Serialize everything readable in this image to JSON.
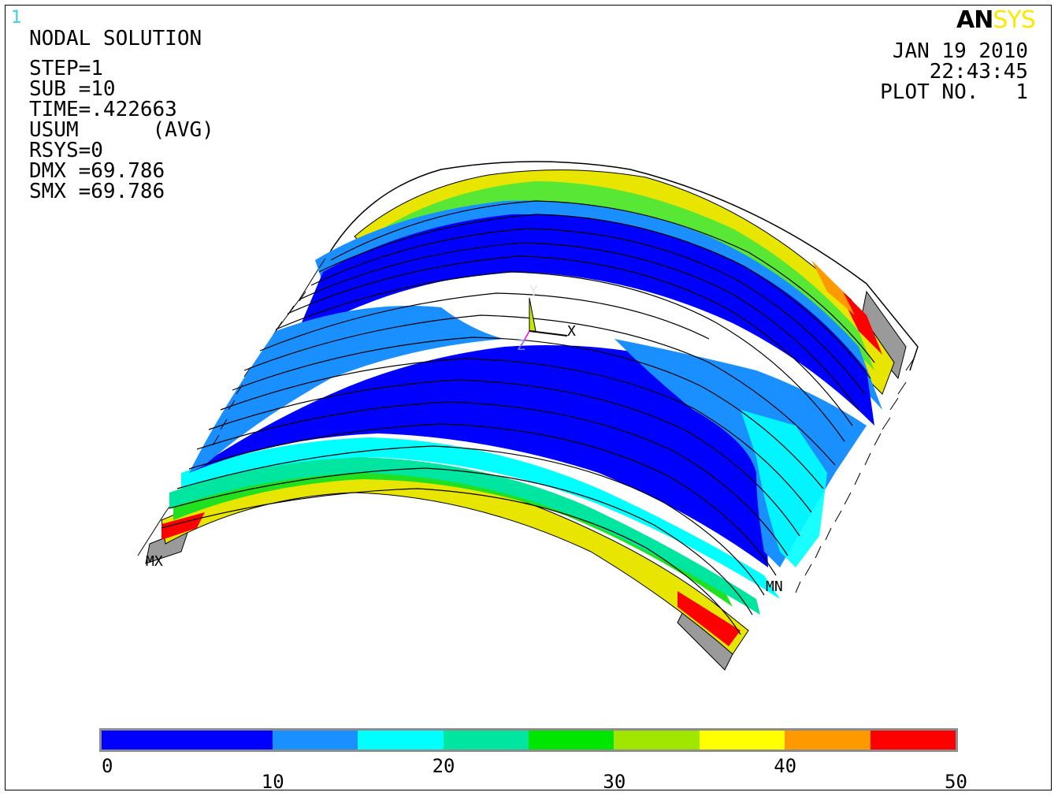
{
  "window_number": "1",
  "logo": {
    "part1": "AN",
    "part2": "SYS"
  },
  "header": {
    "title": "NODAL SOLUTION",
    "step": "STEP=1",
    "sub": "SUB =10",
    "time": "TIME=.422663",
    "usum": "USUM      (AVG)",
    "rsys": "RSYS=0",
    "dmx": "DMX =69.786",
    "smx": "SMX =69.786"
  },
  "stamp": {
    "date": "JAN 19 2010",
    "time": "22:43:45",
    "plot": "PLOT NO.   1"
  },
  "triad": {
    "x": "X",
    "y": "Y",
    "z": "Z"
  },
  "markers": {
    "mx": "MX",
    "mn": "MN"
  },
  "legend": {
    "colors": [
      "#0000ff",
      "#1a8fff",
      "#00ffff",
      "#00e6a0",
      "#00e600",
      "#a0e600",
      "#ffff00",
      "#ff9900",
      "#ff0000"
    ],
    "ticks": [
      "0",
      "10",
      "20",
      "30",
      "40",
      "50"
    ]
  }
}
